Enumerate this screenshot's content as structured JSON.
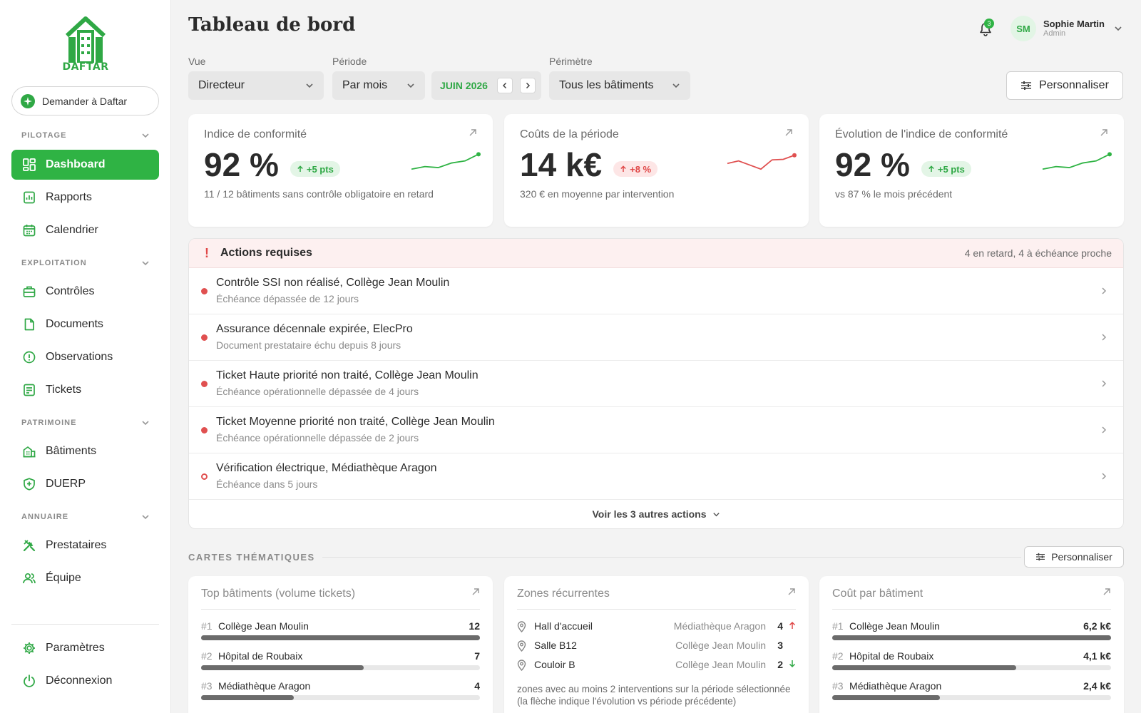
{
  "brand": {
    "logo_text": "DAFTAR",
    "accent": "#2fb344"
  },
  "sidebar": {
    "ask_label": "Demander à Daftar",
    "sections": {
      "pilotage": "PILOTAGE",
      "exploitation": "EXPLOITATION",
      "patrimoine": "PATRIMOINE",
      "annuaire": "ANNUAIRE"
    },
    "items": {
      "dashboard": "Dashboard",
      "rapports": "Rapports",
      "calendrier": "Calendrier",
      "controles": "Contrôles",
      "documents": "Documents",
      "observations": "Observations",
      "tickets": "Tickets",
      "batiments": "Bâtiments",
      "duerp": "DUERP",
      "prestataires": "Prestataires",
      "equipe": "Équipe",
      "parametres": "Paramètres",
      "deconnexion": "Déconnexion"
    },
    "active": "dashboard"
  },
  "header": {
    "title": "Tableau de bord",
    "notifications_count": "3",
    "user": {
      "initials": "SM",
      "name": "Sophie Martin",
      "role": "Admin"
    }
  },
  "filters": {
    "vue": {
      "label": "Vue",
      "value": "Directeur"
    },
    "periode": {
      "label": "Période",
      "value": "Par mois",
      "month": "JUIN 2026"
    },
    "perimetre": {
      "label": "Périmètre",
      "value": "Tous les bâtiments"
    },
    "customize_label": "Personnaliser"
  },
  "kpis": [
    {
      "title": "Indice de conformité",
      "value": "92 %",
      "delta": "+5 pts",
      "trend": "up",
      "subtitle": "11 / 12 bâtiments sans contrôle obligatoire en retard",
      "spark": [
        3,
        4,
        3.6,
        5.4,
        6.2,
        8.8
      ],
      "spark_color": "#2fb344"
    },
    {
      "title": "Coûts de la période",
      "value": "14 k€",
      "delta": "+8 %",
      "trend": "bad",
      "subtitle": "320 € en moyenne par intervention",
      "spark": [
        5.2,
        6.2,
        4.6,
        3.0,
        6.6,
        6.8,
        8.4
      ],
      "spark_color": "#e05050"
    },
    {
      "title": "Évolution de l'indice de conformité",
      "value": "92 %",
      "delta": "+5 pts",
      "trend": "up",
      "subtitle": "vs 87 % le mois précédent",
      "spark": [
        3,
        4,
        3.6,
        5.4,
        6.2,
        8.8
      ],
      "spark_color": "#2fb344"
    }
  ],
  "actions": {
    "title": "Actions requises",
    "summary": "4 en retard, 4 à échéance proche",
    "items": [
      {
        "title": "Contrôle SSI non réalisé, Collège Jean Moulin",
        "subtitle": "Échéance dépassée de 12 jours",
        "status": "overdue"
      },
      {
        "title": "Assurance décennale expirée, ElecPro",
        "subtitle": "Document prestataire échu depuis 8 jours",
        "status": "overdue"
      },
      {
        "title": "Ticket Haute priorité non traité, Collège Jean Moulin",
        "subtitle": "Échéance opérationnelle dépassée de 4 jours",
        "status": "overdue"
      },
      {
        "title": "Ticket Moyenne priorité non traité, Collège Jean Moulin",
        "subtitle": "Échéance opérationnelle dépassée de 2 jours",
        "status": "overdue"
      },
      {
        "title": "Vérification électrique, Médiathèque Aragon",
        "subtitle": "Échéance dans 5 jours",
        "status": "upcoming"
      }
    ],
    "more_label": "Voir les 3 autres actions"
  },
  "cartes": {
    "label": "CARTES THÉMATIQUES",
    "customize_label": "Personnaliser",
    "top_batiments": {
      "title": "Top bâtiments (volume tickets)",
      "rows": [
        {
          "rank": "#1",
          "name": "Collège Jean Moulin",
          "value": "12",
          "fraction": 1.0
        },
        {
          "rank": "#2",
          "name": "Hôpital de Roubaix",
          "value": "7",
          "fraction": 0.583
        },
        {
          "rank": "#3",
          "name": "Médiathèque Aragon",
          "value": "4",
          "fraction": 0.333
        }
      ]
    },
    "zones": {
      "title": "Zones récurrentes",
      "rows": [
        {
          "zone": "Hall d'accueil",
          "building": "Médiathèque Aragon",
          "count": "4",
          "trend": "up"
        },
        {
          "zone": "Salle B12",
          "building": "Collège Jean Moulin",
          "count": "3",
          "trend": "none"
        },
        {
          "zone": "Couloir B",
          "building": "Collège Jean Moulin",
          "count": "2",
          "trend": "down"
        }
      ],
      "note": "zones avec au moins 2 interventions sur la période sélectionnée (la flèche indique l'évolution vs période précédente)"
    },
    "cout": {
      "title": "Coût par bâtiment",
      "rows": [
        {
          "rank": "#1",
          "name": "Collège Jean Moulin",
          "value": "6,2 k€",
          "fraction": 1.0
        },
        {
          "rank": "#2",
          "name": "Hôpital de Roubaix",
          "value": "4,1 k€",
          "fraction": 0.661
        },
        {
          "rank": "#3",
          "name": "Médiathèque Aragon",
          "value": "2,4 k€",
          "fraction": 0.387
        }
      ]
    }
  }
}
